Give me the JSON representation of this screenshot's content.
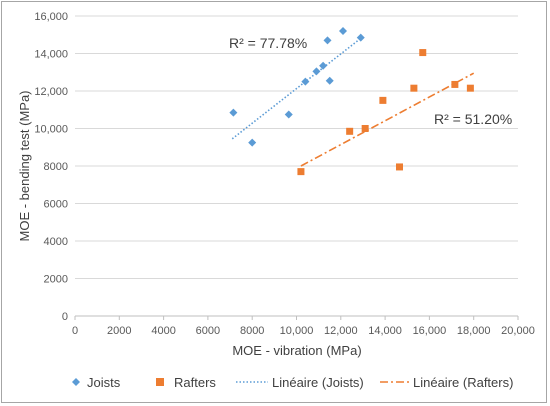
{
  "chart_data": {
    "type": "scatter",
    "xlabel": "MOE - vibration (MPa)",
    "ylabel": "MOE - bending test (MPa)",
    "xlim": [
      0,
      20000
    ],
    "ylim": [
      0,
      16000
    ],
    "x_ticks": [
      "0",
      "2000",
      "4000",
      "6000",
      "8000",
      "10,000",
      "12,000",
      "14,000",
      "16,000",
      "18,000",
      "20,000"
    ],
    "y_ticks": [
      "0",
      "2000",
      "4000",
      "6000",
      "8000",
      "10,000",
      "12,000",
      "14,000",
      "16,000"
    ],
    "x_tick_values": [
      0,
      2000,
      4000,
      6000,
      8000,
      10000,
      12000,
      14000,
      16000,
      18000,
      20000
    ],
    "y_tick_values": [
      0,
      2000,
      4000,
      6000,
      8000,
      10000,
      12000,
      14000,
      16000
    ],
    "grid": "horizontal",
    "legend_position": "bottom",
    "series": [
      {
        "name": "Joists",
        "marker": "diamond",
        "color": "#5b9bd5",
        "points": [
          [
            7150,
            10850
          ],
          [
            8000,
            9250
          ],
          [
            9650,
            10750
          ],
          [
            10400,
            12500
          ],
          [
            10900,
            13050
          ],
          [
            11200,
            13350
          ],
          [
            11400,
            14700
          ],
          [
            11500,
            12550
          ],
          [
            12100,
            15200
          ],
          [
            12900,
            14850
          ]
        ]
      },
      {
        "name": "Rafters",
        "marker": "square",
        "color": "#ed7d31",
        "points": [
          [
            10200,
            7700
          ],
          [
            12400,
            9850
          ],
          [
            13100,
            10000
          ],
          [
            13900,
            11500
          ],
          [
            14650,
            7950
          ],
          [
            15300,
            12150
          ],
          [
            15700,
            14050
          ],
          [
            17150,
            12350
          ],
          [
            17850,
            12150
          ]
        ]
      }
    ],
    "trendlines": [
      {
        "name": "Linéaire (Joists)",
        "color": "#5b9bd5",
        "style": "dotted",
        "start": [
          7100,
          9450
        ],
        "end": [
          13000,
          14900
        ],
        "r2_label": "R² = 77.78%"
      },
      {
        "name": "Linéaire (Rafters)",
        "color": "#ed7d31",
        "style": "dash-dot",
        "start": [
          10200,
          8000
        ],
        "end": [
          18000,
          12950
        ],
        "r2_label": "R² = 51.20%"
      }
    ],
    "legend": [
      "Joists",
      "Rafters",
      "Linéaire (Joists)",
      "Linéaire (Rafters)"
    ]
  }
}
